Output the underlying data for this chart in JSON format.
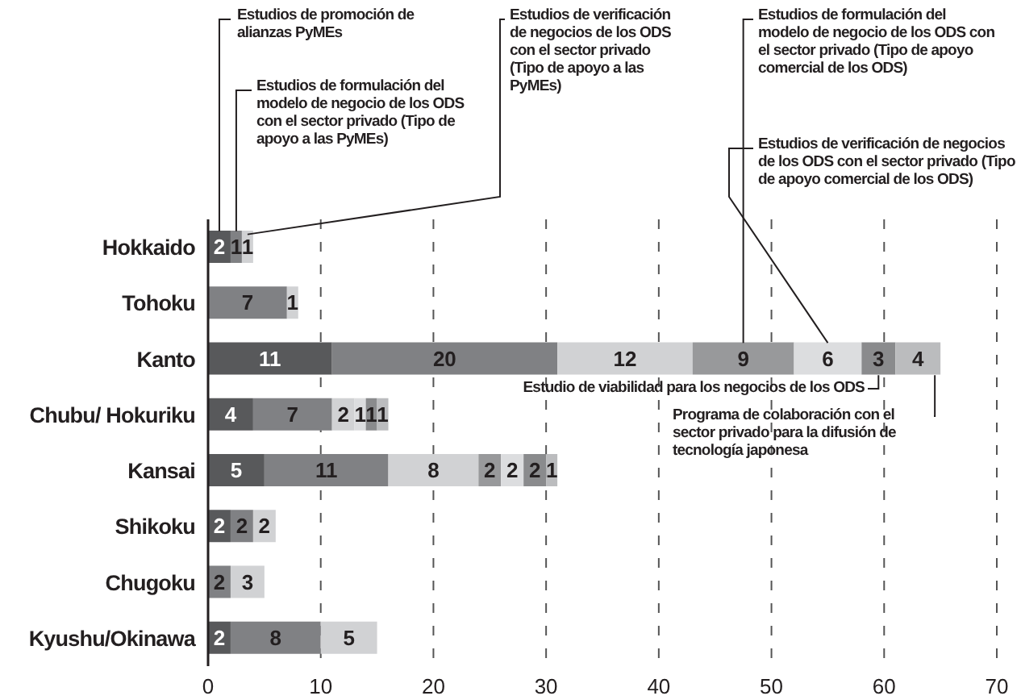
{
  "chart_data": {
    "type": "bar",
    "orientation": "horizontal",
    "stacked": true,
    "categories": [
      "Hokkaido",
      "Tohoku",
      "Kanto",
      "Chubu/ Hokuriku",
      "Kansai",
      "Shikoku",
      "Chugoku",
      "Kyushu/Okinawa"
    ],
    "series": [
      {
        "name": "Estudios de promoción de alianzas PyMEs",
        "color": "#58595b",
        "values": [
          2,
          null,
          11,
          4,
          5,
          2,
          null,
          2
        ]
      },
      {
        "name": "Estudios de formulación del modelo de negocio de los ODS con el sector privado (Tipo de apoyo a las PyMEs)",
        "color": "#808184",
        "values": [
          1,
          7,
          20,
          7,
          11,
          2,
          2,
          8
        ]
      },
      {
        "name": "Estudios de verificación de negocios de los ODS con el sector privado (Tipo de apoyo a las PyMEs)",
        "color": "#d1d2d4",
        "values": [
          1,
          1,
          12,
          2,
          8,
          2,
          3,
          5
        ]
      },
      {
        "name": "Estudios de formulación del modelo de negocio de los ODS con el sector privado (Tipo de apoyo comercial de los ODS)",
        "color": "#98999b",
        "values": [
          null,
          null,
          9,
          null,
          2,
          null,
          null,
          null
        ]
      },
      {
        "name": "Estudios de verificación de negocios de los ODS con el sector privado (Tipo de apoyo comercial de los ODS)",
        "color": "#dcdddf",
        "values": [
          null,
          null,
          6,
          1,
          2,
          null,
          null,
          null
        ]
      },
      {
        "name": "Estudio de viabilidad para los negocios de los ODS",
        "color": "#8a8b8d",
        "values": [
          null,
          null,
          3,
          1,
          2,
          null,
          null,
          null
        ]
      },
      {
        "name": "Programa de colaboración con el sector privado para la difusión de tecnología japonesa",
        "color": "#bbbcbe",
        "values": [
          null,
          null,
          4,
          1,
          1,
          null,
          null,
          null
        ]
      }
    ],
    "xlim": [
      0,
      70
    ],
    "xticks": [
      0,
      10,
      20,
      30,
      40,
      50,
      60,
      70
    ],
    "grid": "x",
    "legend": false,
    "data_labels": true
  }
}
